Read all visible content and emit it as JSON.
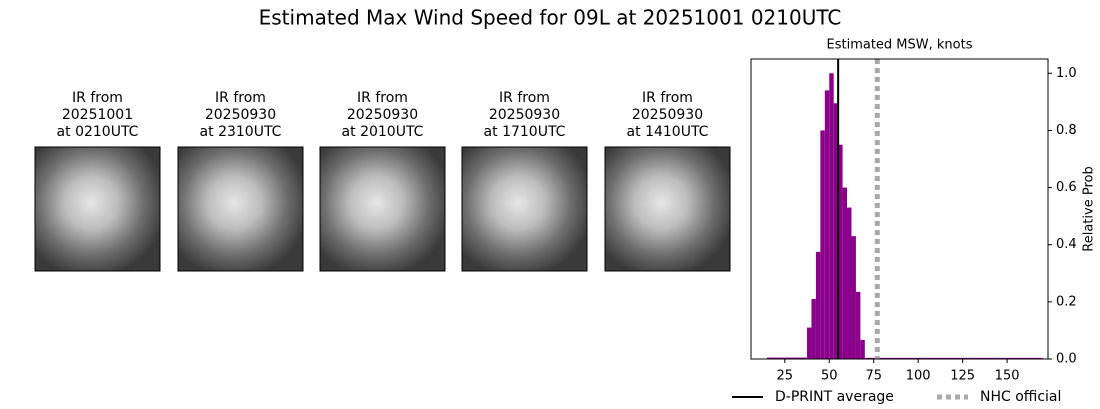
{
  "title": "Estimated Max Wind Speed for 09L at 20251001 0210UTC",
  "panels": [
    {
      "lines": [
        "IR from",
        "20251001",
        "at 0210UTC"
      ]
    },
    {
      "lines": [
        "IR from",
        "20250930",
        "at 2310UTC"
      ]
    },
    {
      "lines": [
        "IR from",
        "20250930",
        "at 2010UTC"
      ]
    },
    {
      "lines": [
        "IR from",
        "20250930",
        "at 1710UTC"
      ]
    },
    {
      "lines": [
        "IR from",
        "20250930",
        "at 1410UTC"
      ]
    }
  ],
  "chart_data": {
    "type": "histogram",
    "title": "Estimated MSW, knots",
    "y_label": "Relative Prob",
    "color": "#8b008b",
    "bins": [
      15,
      37.5,
      40,
      42.5,
      45,
      47.5,
      50,
      52.5,
      55,
      57.5,
      60,
      62.5,
      65,
      67.5,
      70,
      170
    ],
    "values": [
      0.005,
      0.11,
      0.21,
      0.375,
      0.8,
      0.94,
      1.0,
      0.895,
      0.75,
      0.6,
      0.53,
      0.43,
      0.235,
      0.067,
      0.004
    ],
    "xlim": [
      6,
      173
    ],
    "xticks": [
      25,
      50,
      75,
      100,
      125,
      150
    ],
    "ylim": [
      0,
      1.05
    ],
    "yticks": [
      {
        "value": 0,
        "label": "0.0"
      },
      {
        "value": 0.2,
        "label": "0.2"
      },
      {
        "value": 0.4,
        "label": "0.4"
      },
      {
        "value": 0.6,
        "label": "0.6"
      },
      {
        "value": 0.8,
        "label": "0.8"
      },
      {
        "value": 1.0,
        "label": "1.0"
      }
    ],
    "lines": [
      {
        "name": "D-PRINT average",
        "value": 55,
        "color": "#000000",
        "style": "solid"
      },
      {
        "name": "NHC official",
        "value": 77,
        "color": "#a9a9a9",
        "style": "dotted"
      }
    ]
  }
}
